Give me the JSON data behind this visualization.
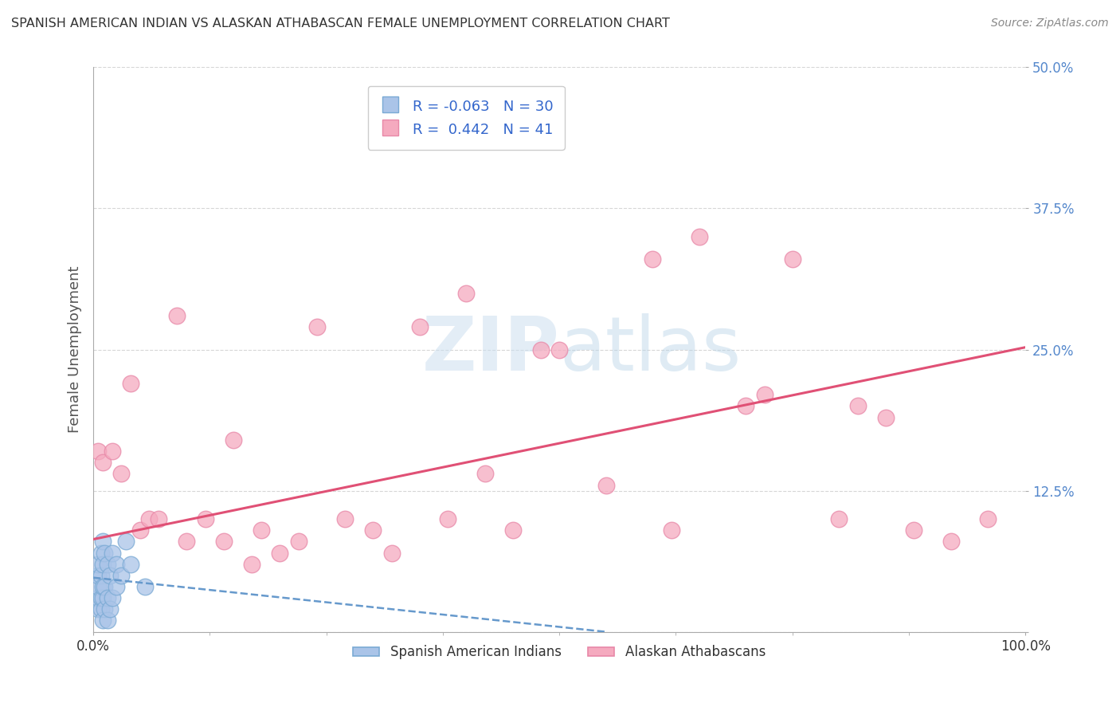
{
  "title": "SPANISH AMERICAN INDIAN VS ALASKAN ATHABASCAN FEMALE UNEMPLOYMENT CORRELATION CHART",
  "source": "Source: ZipAtlas.com",
  "ylabel": "Female Unemployment",
  "xlim": [
    0.0,
    1.0
  ],
  "ylim": [
    0.0,
    0.5
  ],
  "xtick_pos": [
    0.0,
    1.0
  ],
  "xtick_labels": [
    "0.0%",
    "100.0%"
  ],
  "yticks": [
    0.0,
    0.125,
    0.25,
    0.375,
    0.5
  ],
  "ytick_labels": [
    "",
    "12.5%",
    "25.0%",
    "37.5%",
    "50.0%"
  ],
  "blue_R": -0.063,
  "blue_N": 30,
  "pink_R": 0.442,
  "pink_N": 41,
  "blue_color": "#aac4e8",
  "pink_color": "#f5aabf",
  "blue_edge": "#7aaad4",
  "pink_edge": "#e888a8",
  "legend_label1": "Spanish American Indians",
  "legend_label2": "Alaskan Athabascans",
  "blue_x": [
    0.005,
    0.005,
    0.005,
    0.005,
    0.005,
    0.008,
    0.008,
    0.008,
    0.008,
    0.01,
    0.01,
    0.01,
    0.01,
    0.01,
    0.012,
    0.012,
    0.012,
    0.015,
    0.015,
    0.015,
    0.018,
    0.018,
    0.02,
    0.02,
    0.025,
    0.025,
    0.03,
    0.035,
    0.04,
    0.055
  ],
  "blue_y": [
    0.02,
    0.03,
    0.04,
    0.05,
    0.06,
    0.02,
    0.03,
    0.05,
    0.07,
    0.01,
    0.03,
    0.04,
    0.06,
    0.08,
    0.02,
    0.04,
    0.07,
    0.01,
    0.03,
    0.06,
    0.02,
    0.05,
    0.03,
    0.07,
    0.04,
    0.06,
    0.05,
    0.08,
    0.06,
    0.04
  ],
  "pink_x": [
    0.005,
    0.01,
    0.02,
    0.03,
    0.04,
    0.05,
    0.06,
    0.07,
    0.09,
    0.1,
    0.12,
    0.14,
    0.15,
    0.17,
    0.18,
    0.2,
    0.22,
    0.24,
    0.27,
    0.3,
    0.32,
    0.35,
    0.38,
    0.4,
    0.42,
    0.45,
    0.48,
    0.5,
    0.55,
    0.6,
    0.62,
    0.65,
    0.7,
    0.72,
    0.75,
    0.8,
    0.82,
    0.85,
    0.88,
    0.92,
    0.96
  ],
  "pink_y": [
    0.16,
    0.15,
    0.16,
    0.14,
    0.22,
    0.09,
    0.1,
    0.1,
    0.28,
    0.08,
    0.1,
    0.08,
    0.17,
    0.06,
    0.09,
    0.07,
    0.08,
    0.27,
    0.1,
    0.09,
    0.07,
    0.27,
    0.1,
    0.3,
    0.14,
    0.09,
    0.25,
    0.25,
    0.13,
    0.33,
    0.09,
    0.35,
    0.2,
    0.21,
    0.33,
    0.1,
    0.2,
    0.19,
    0.09,
    0.08,
    0.1
  ],
  "blue_trend_x": [
    0.0,
    0.55
  ],
  "blue_trend_y": [
    0.048,
    0.0
  ],
  "pink_trend_x": [
    0.0,
    1.0
  ],
  "pink_trend_y": [
    0.082,
    0.252
  ]
}
